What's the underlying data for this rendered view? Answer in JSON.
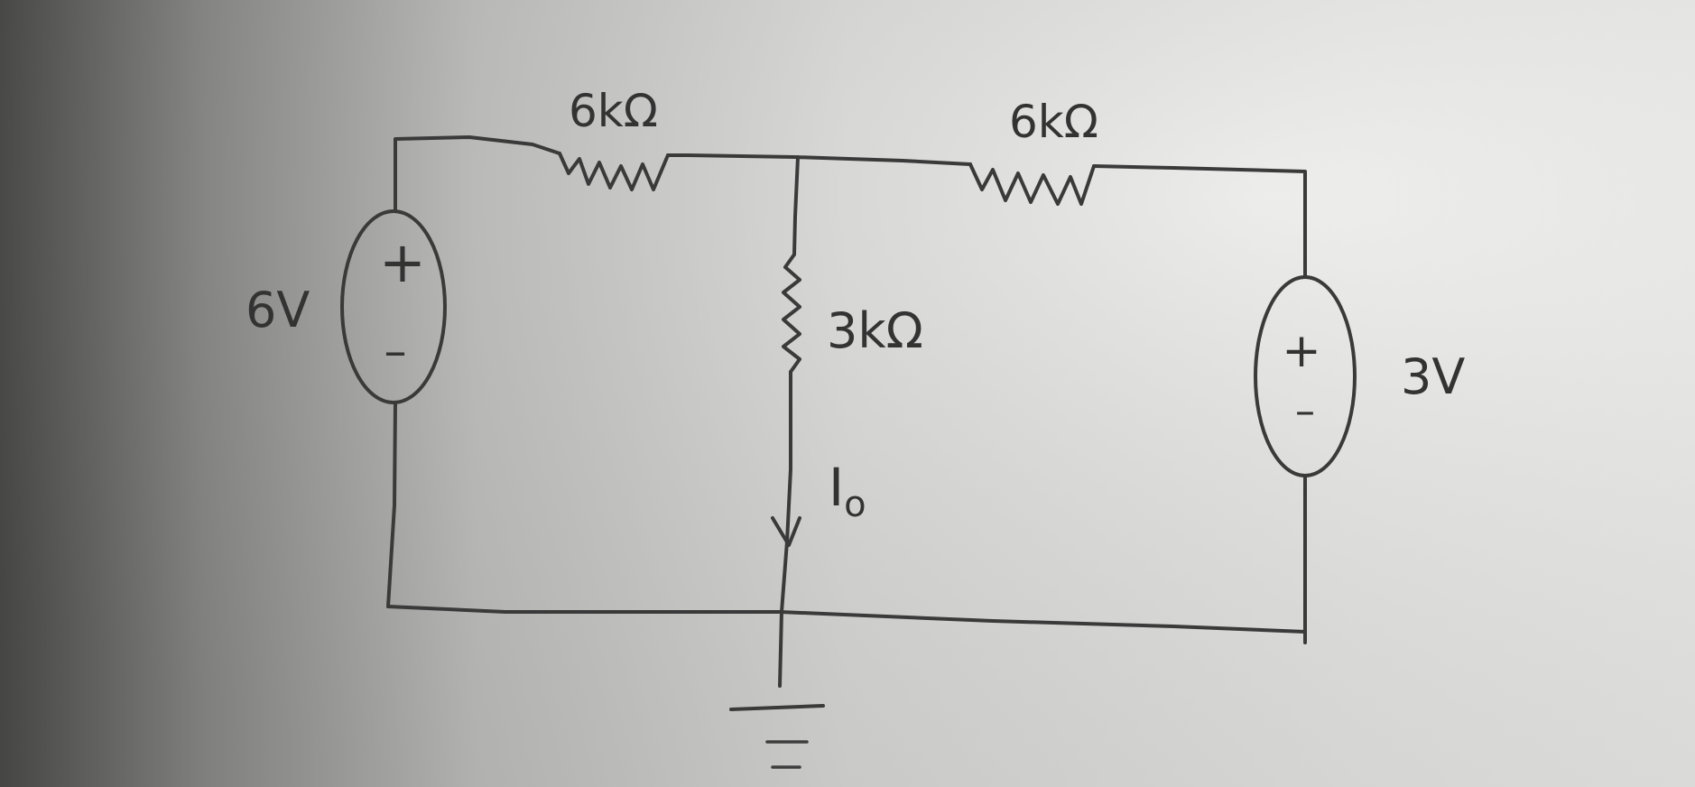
{
  "components": {
    "source_left": {
      "label": "6V",
      "plus": "+",
      "minus": "–"
    },
    "source_right": {
      "label": "3V",
      "plus": "+",
      "minus": "–"
    },
    "resistor_top_left": {
      "label": "6kΩ"
    },
    "resistor_top_right": {
      "label": "6kΩ"
    },
    "resistor_middle": {
      "label": "3kΩ"
    },
    "current": {
      "label": "I",
      "subscript": "o"
    }
  },
  "colors": {
    "ink": "#3a3a3a",
    "paper_light": "#eeeeec",
    "paper_dark": "#4a4a48"
  }
}
